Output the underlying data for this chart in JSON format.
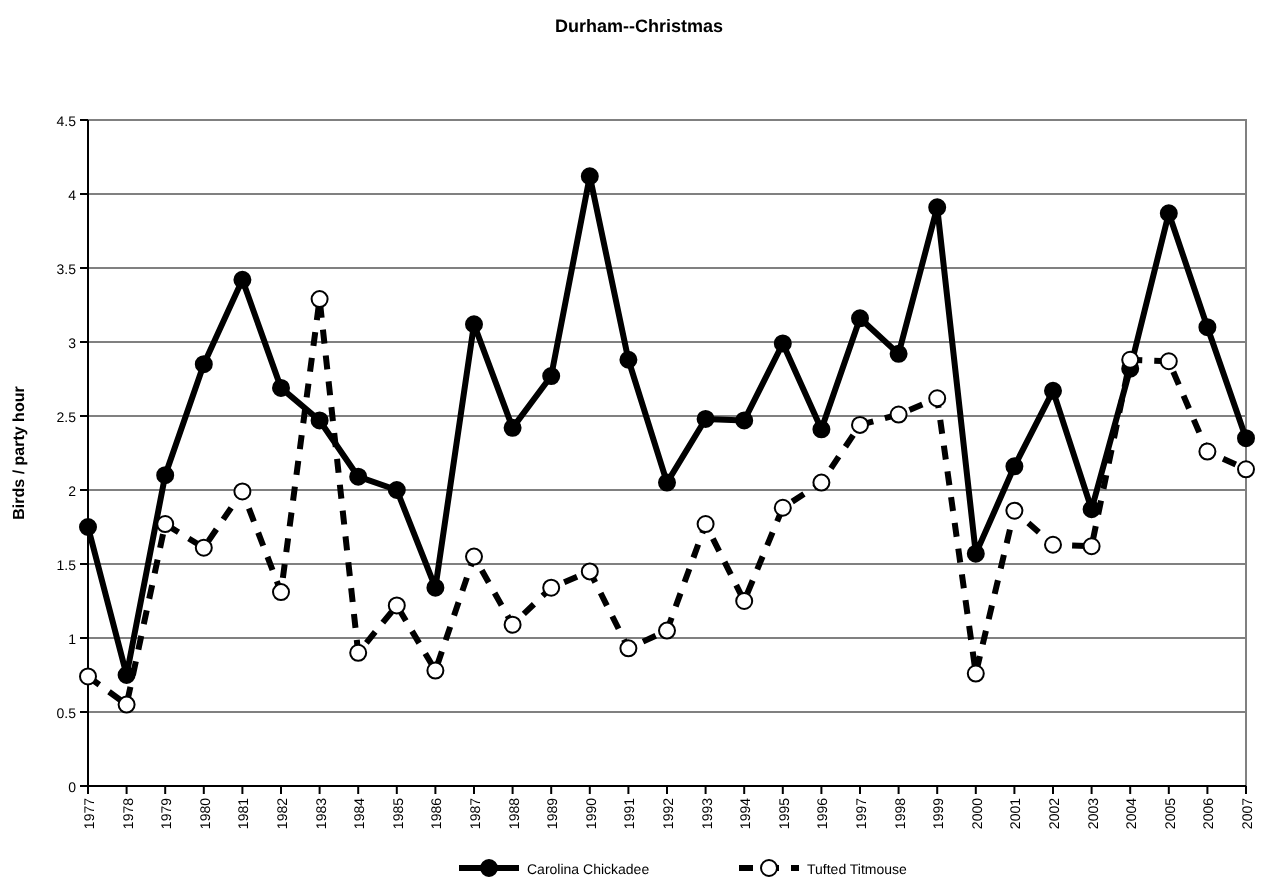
{
  "chart_data": {
    "type": "line",
    "title": "Durham--Christmas",
    "ylabel": "Birds / party hour",
    "categories": [
      "1977",
      "1978",
      "1979",
      "1980",
      "1981",
      "1982",
      "1983",
      "1984",
      "1985",
      "1986",
      "1987",
      "1988",
      "1989",
      "1990",
      "1991",
      "1992",
      "1993",
      "1994",
      "1995",
      "1996",
      "1997",
      "1998",
      "1999",
      "2000",
      "2001",
      "2002",
      "2003",
      "2004",
      "2005",
      "2006",
      "2007"
    ],
    "series": [
      {
        "name": "Carolina Chickadee",
        "color": "#000000",
        "marker": "circle",
        "line_style": "solid",
        "values": [
          1.75,
          0.75,
          2.1,
          2.85,
          3.42,
          2.69,
          2.47,
          2.09,
          2.0,
          1.34,
          3.12,
          2.42,
          2.77,
          4.12,
          2.88,
          2.05,
          2.48,
          2.47,
          2.99,
          2.41,
          3.16,
          2.92,
          3.91,
          1.57,
          2.16,
          2.67,
          1.87,
          2.82,
          3.87,
          3.1,
          2.35
        ]
      },
      {
        "name": "Tufted Titmouse",
        "color": "#000000",
        "marker": "circle",
        "line_style": "dashed",
        "values": [
          0.74,
          0.55,
          1.77,
          1.61,
          1.99,
          1.31,
          3.29,
          0.9,
          1.22,
          0.78,
          1.55,
          1.09,
          1.34,
          1.45,
          0.93,
          1.05,
          1.77,
          1.25,
          1.88,
          2.05,
          2.44,
          2.51,
          2.62,
          0.76,
          1.86,
          1.63,
          1.62,
          2.88,
          2.87,
          2.26,
          2.14
        ]
      }
    ],
    "ylim": [
      0,
      4.5
    ],
    "yticks": [
      0,
      0.5,
      1,
      1.5,
      2,
      2.5,
      3,
      3.5,
      4,
      4.5
    ],
    "grid": "y",
    "legend": "bottom"
  }
}
